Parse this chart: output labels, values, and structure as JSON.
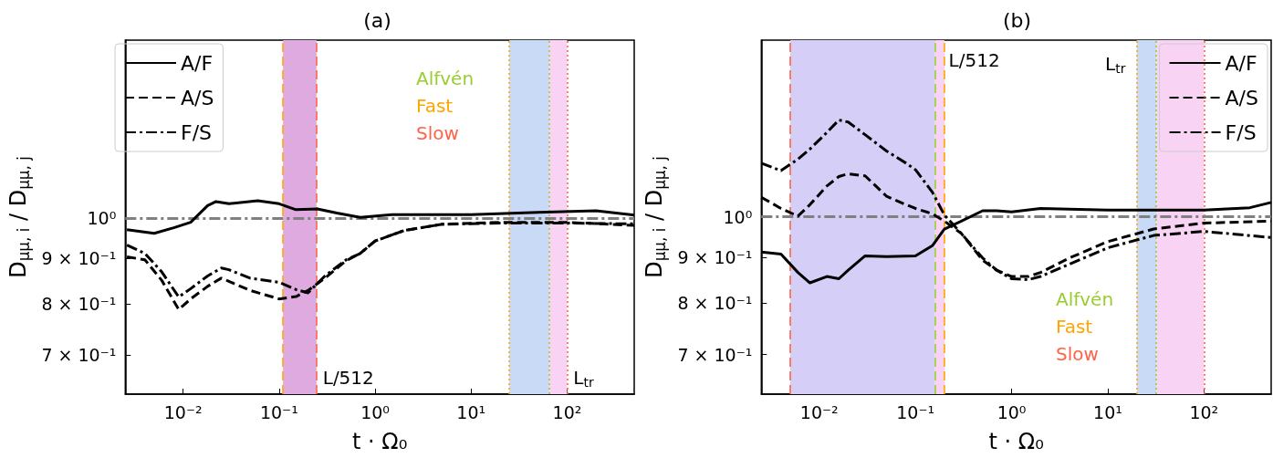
{
  "chart_data": [
    {
      "type": "line",
      "title": "(a)",
      "xlabel": "t · Ω₀",
      "ylabel": "D$_{μμ, i}$ / D$_{μμ, j}$",
      "log": "xy",
      "grid": false,
      "legend": "top left",
      "marker": "none",
      "xlim": [
        0.0025,
        500
      ],
      "ylim": [
        0.632,
        1.59
      ],
      "xticks": [
        {
          "value": 0.01,
          "label": "10⁻²"
        },
        {
          "value": 0.1,
          "label": "10⁻¹"
        },
        {
          "value": 1,
          "label": "10⁰"
        },
        {
          "value": 10,
          "label": "10¹"
        },
        {
          "value": 100,
          "label": "10²"
        }
      ],
      "yticks": [
        {
          "value": 0.7,
          "label": "7 × 10⁻¹"
        },
        {
          "value": 0.8,
          "label": "8 × 10⁻¹"
        },
        {
          "value": 0.9,
          "label": "9 × 10⁻¹"
        },
        {
          "value": 1,
          "label": "10⁰"
        }
      ],
      "series": [
        {
          "name": "A/F",
          "color": "#000000",
          "line_style": "solid",
          "x": [
            0.0026,
            0.005,
            0.008,
            0.012,
            0.018,
            0.022,
            0.03,
            0.06,
            0.1,
            0.15,
            0.25,
            0.4,
            0.7,
            1.5,
            10,
            50,
            200,
            500
          ],
          "values": [
            0.97,
            0.961,
            0.975,
            0.989,
            1.033,
            1.044,
            1.038,
            1.046,
            1.038,
            1.022,
            1.024,
            1.013,
            1.002,
            1.009,
            1.009,
            1.015,
            1.019,
            1.008
          ]
        },
        {
          "name": "A/S",
          "color": "#000000",
          "line_style": "dashed",
          "x": [
            0.0026,
            0.004,
            0.006,
            0.009,
            0.012,
            0.018,
            0.025,
            0.03,
            0.05,
            0.1,
            0.15,
            0.2,
            0.3,
            0.5,
            0.7,
            1,
            2,
            5,
            20,
            100,
            500
          ],
          "values": [
            0.904,
            0.897,
            0.85,
            0.788,
            0.81,
            0.837,
            0.855,
            0.848,
            0.828,
            0.81,
            0.815,
            0.828,
            0.855,
            0.895,
            0.912,
            0.942,
            0.968,
            0.984,
            0.989,
            0.989,
            0.981
          ]
        },
        {
          "name": "F/S",
          "color": "#000000",
          "line_style": "dashdot",
          "x": [
            0.0026,
            0.004,
            0.006,
            0.009,
            0.012,
            0.018,
            0.025,
            0.03,
            0.05,
            0.1,
            0.15,
            0.2,
            0.3,
            0.5,
            0.7,
            1,
            2,
            5,
            20,
            100,
            500
          ],
          "values": [
            0.932,
            0.912,
            0.869,
            0.814,
            0.832,
            0.86,
            0.878,
            0.874,
            0.855,
            0.846,
            0.83,
            0.823,
            0.86,
            0.897,
            0.912,
            0.942,
            0.968,
            0.984,
            0.987,
            0.987,
            0.985
          ]
        }
      ],
      "ref_lines": [
        {
          "axis": "x",
          "value": 65,
          "label": "Alfvén",
          "color": "#9acd32",
          "line_style": "dotted"
        },
        {
          "axis": "x",
          "value": 25,
          "label": "Fast",
          "color": "#ffa500",
          "line_style": "dotted"
        },
        {
          "axis": "x",
          "value": 100,
          "label": "Slow",
          "color": "#ff6347",
          "line_style": "dotted"
        },
        {
          "axis": "x",
          "value": 0.11,
          "color": "#ffa500",
          "line_style": "dashed"
        },
        {
          "axis": "x",
          "value": 0.245,
          "color": "#ff6347",
          "line_style": "dashed"
        },
        {
          "axis": "y",
          "value": 1,
          "color": "#808080",
          "line_style": "dashdot"
        }
      ],
      "bands": [
        {
          "axis": "x",
          "from": 0.11,
          "to": 0.245,
          "color": "#dfaadf"
        },
        {
          "axis": "x",
          "from": 25,
          "to": 65,
          "color": "#c8daf6"
        },
        {
          "axis": "x",
          "from": 65,
          "to": 100,
          "color": "#f8d3f3"
        }
      ],
      "annotations": [
        {
          "text": "L/512",
          "x": 0.27,
          "y": 0.66
        },
        {
          "text": "L$_{tr}$",
          "x": 110,
          "y": 0.66
        }
      ]
    },
    {
      "type": "line",
      "title": "(b)",
      "xlabel": "t · Ω₀",
      "ylabel": "D$_{μμ, i}$ / D$_{μμ, j}$",
      "log": "xy",
      "grid": false,
      "legend": "top right",
      "marker": "none",
      "xlim": [
        0.0025,
        500
      ],
      "ylim": [
        0.632,
        1.58
      ],
      "xticks": [
        {
          "value": 0.01,
          "label": "10⁻²"
        },
        {
          "value": 0.1,
          "label": "10⁻¹"
        },
        {
          "value": 1,
          "label": "10⁰"
        },
        {
          "value": 10,
          "label": "10¹"
        },
        {
          "value": 100,
          "label": "10²"
        }
      ],
      "yticks": [
        {
          "value": 0.7,
          "label": "7 × 10⁻¹"
        },
        {
          "value": 0.8,
          "label": "8 × 10⁻¹"
        },
        {
          "value": 0.9,
          "label": "9 × 10⁻¹"
        },
        {
          "value": 1,
          "label": "10⁰"
        }
      ],
      "series": [
        {
          "name": "A/F",
          "color": "#000000",
          "line_style": "solid",
          "x": [
            0.0025,
            0.004,
            0.006,
            0.008,
            0.012,
            0.016,
            0.02,
            0.03,
            0.05,
            0.1,
            0.15,
            0.2,
            0.3,
            0.5,
            0.7,
            1,
            2,
            10,
            100,
            300,
            500
          ],
          "values": [
            0.913,
            0.908,
            0.866,
            0.843,
            0.857,
            0.852,
            0.871,
            0.904,
            0.902,
            0.904,
            0.928,
            0.969,
            0.989,
            1.016,
            1.016,
            1.013,
            1.022,
            1.018,
            1.018,
            1.024,
            1.038
          ]
        },
        {
          "name": "A/S",
          "color": "#000000",
          "line_style": "dashed",
          "x": [
            0.0025,
            0.004,
            0.006,
            0.008,
            0.012,
            0.016,
            0.02,
            0.03,
            0.05,
            0.08,
            0.1,
            0.15,
            0.2,
            0.3,
            0.5,
            0.7,
            1,
            1.5,
            2,
            4,
            10,
            30,
            100,
            500
          ],
          "values": [
            1.052,
            1.022,
            1.002,
            1.032,
            1.083,
            1.11,
            1.118,
            1.112,
            1.055,
            1.032,
            1.022,
            1.008,
            0.989,
            0.958,
            0.894,
            0.871,
            0.857,
            0.857,
            0.866,
            0.899,
            0.938,
            0.969,
            0.984,
            0.989
          ]
        },
        {
          "name": "F/S",
          "color": "#000000",
          "line_style": "dashdot",
          "x": [
            0.0025,
            0.004,
            0.006,
            0.008,
            0.012,
            0.016,
            0.02,
            0.03,
            0.05,
            0.08,
            0.1,
            0.15,
            0.2,
            0.3,
            0.5,
            0.7,
            1,
            1.5,
            2,
            4,
            10,
            30,
            100,
            500
          ],
          "values": [
            1.149,
            1.127,
            1.161,
            1.192,
            1.244,
            1.285,
            1.278,
            1.237,
            1.186,
            1.149,
            1.13,
            1.066,
            1.005,
            0.958,
            0.899,
            0.871,
            0.852,
            0.85,
            0.857,
            0.885,
            0.923,
            0.953,
            0.963,
            0.948
          ]
        }
      ],
      "ref_lines": [
        {
          "axis": "x",
          "value": 32,
          "label": "Alfvén",
          "color": "#9acd32",
          "line_style": "dotted"
        },
        {
          "axis": "x",
          "value": 20,
          "label": "Fast",
          "color": "#ffa500",
          "line_style": "dotted"
        },
        {
          "axis": "x",
          "value": 100,
          "label": "Slow",
          "color": "#ff6347",
          "line_style": "dotted"
        },
        {
          "axis": "x",
          "value": 0.005,
          "color": "#ff6347",
          "line_style": "dashed"
        },
        {
          "axis": "x",
          "value": 0.16,
          "color": "#9acd32",
          "line_style": "dashed"
        },
        {
          "axis": "x",
          "value": 0.2,
          "color": "#ffa500",
          "line_style": "dashed"
        },
        {
          "axis": "y",
          "value": 1,
          "color": "#808080",
          "line_style": "dashdot"
        }
      ],
      "bands": [
        {
          "axis": "x",
          "from": 0.005,
          "to": 0.16,
          "color": "#d5cef6"
        },
        {
          "axis": "x",
          "from": 0.16,
          "to": 0.2,
          "color": "#f8d3f3"
        },
        {
          "axis": "x",
          "from": 20,
          "to": 32,
          "color": "#c8daf6"
        },
        {
          "axis": "x",
          "from": 32,
          "to": 100,
          "color": "#f8d3f3"
        }
      ],
      "annotations": [
        {
          "text": "L/512",
          "x": 0.21,
          "y": 1.5
        },
        "L$_{tr}$"
      ]
    }
  ]
}
